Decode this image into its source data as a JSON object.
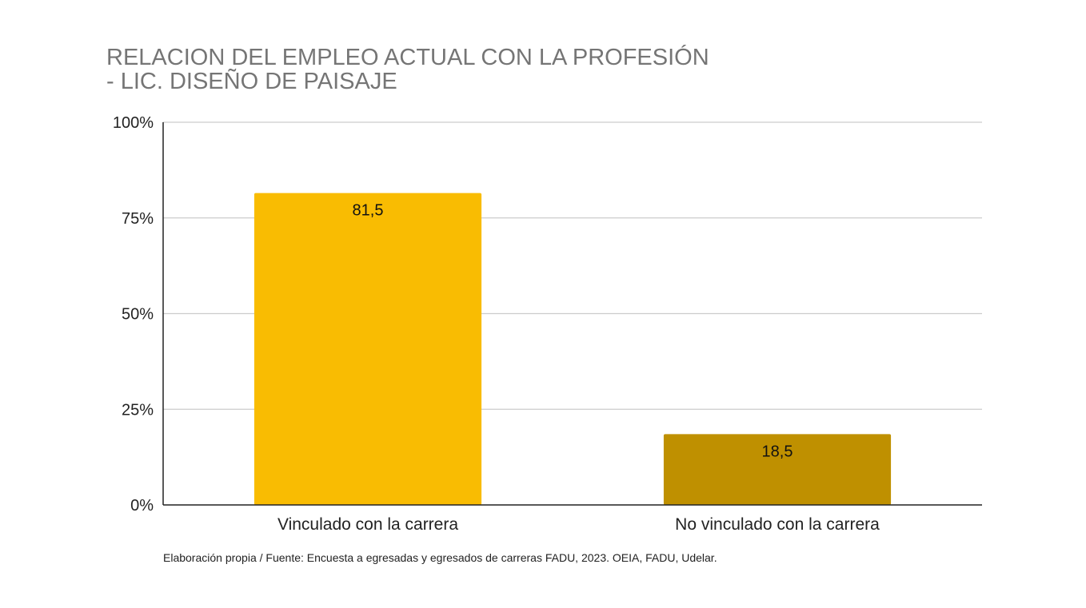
{
  "chart_data": {
    "type": "bar",
    "title": "RELACION DEL EMPLEO ACTUAL CON LA PROFESIÓN - LIC. DISEÑO DE PAISAJE",
    "title_lines": [
      "RELACION DEL EMPLEO ACTUAL CON LA PROFESIÓN",
      "- LIC. DISEÑO DE PAISAJE"
    ],
    "categories": [
      "Vinculado con la carrera",
      "No vinculado con la carrera"
    ],
    "values": [
      81.5,
      18.5
    ],
    "data_labels": [
      "81,5",
      "18,5"
    ],
    "colors": [
      "#f9bc02",
      "#bf9000"
    ],
    "ylim": [
      0,
      100
    ],
    "yticks": [
      0,
      25,
      50,
      75,
      100
    ],
    "ytick_labels": [
      "0%",
      "25%",
      "50%",
      "75%",
      "100%"
    ],
    "xlabel": "",
    "ylabel": "",
    "grid": true,
    "legend": "none",
    "source_note": "Elaboración propia / Fuente: Encuesta a egresadas y egresados de carreras FADU, 2023. OEIA, FADU, Udelar."
  }
}
